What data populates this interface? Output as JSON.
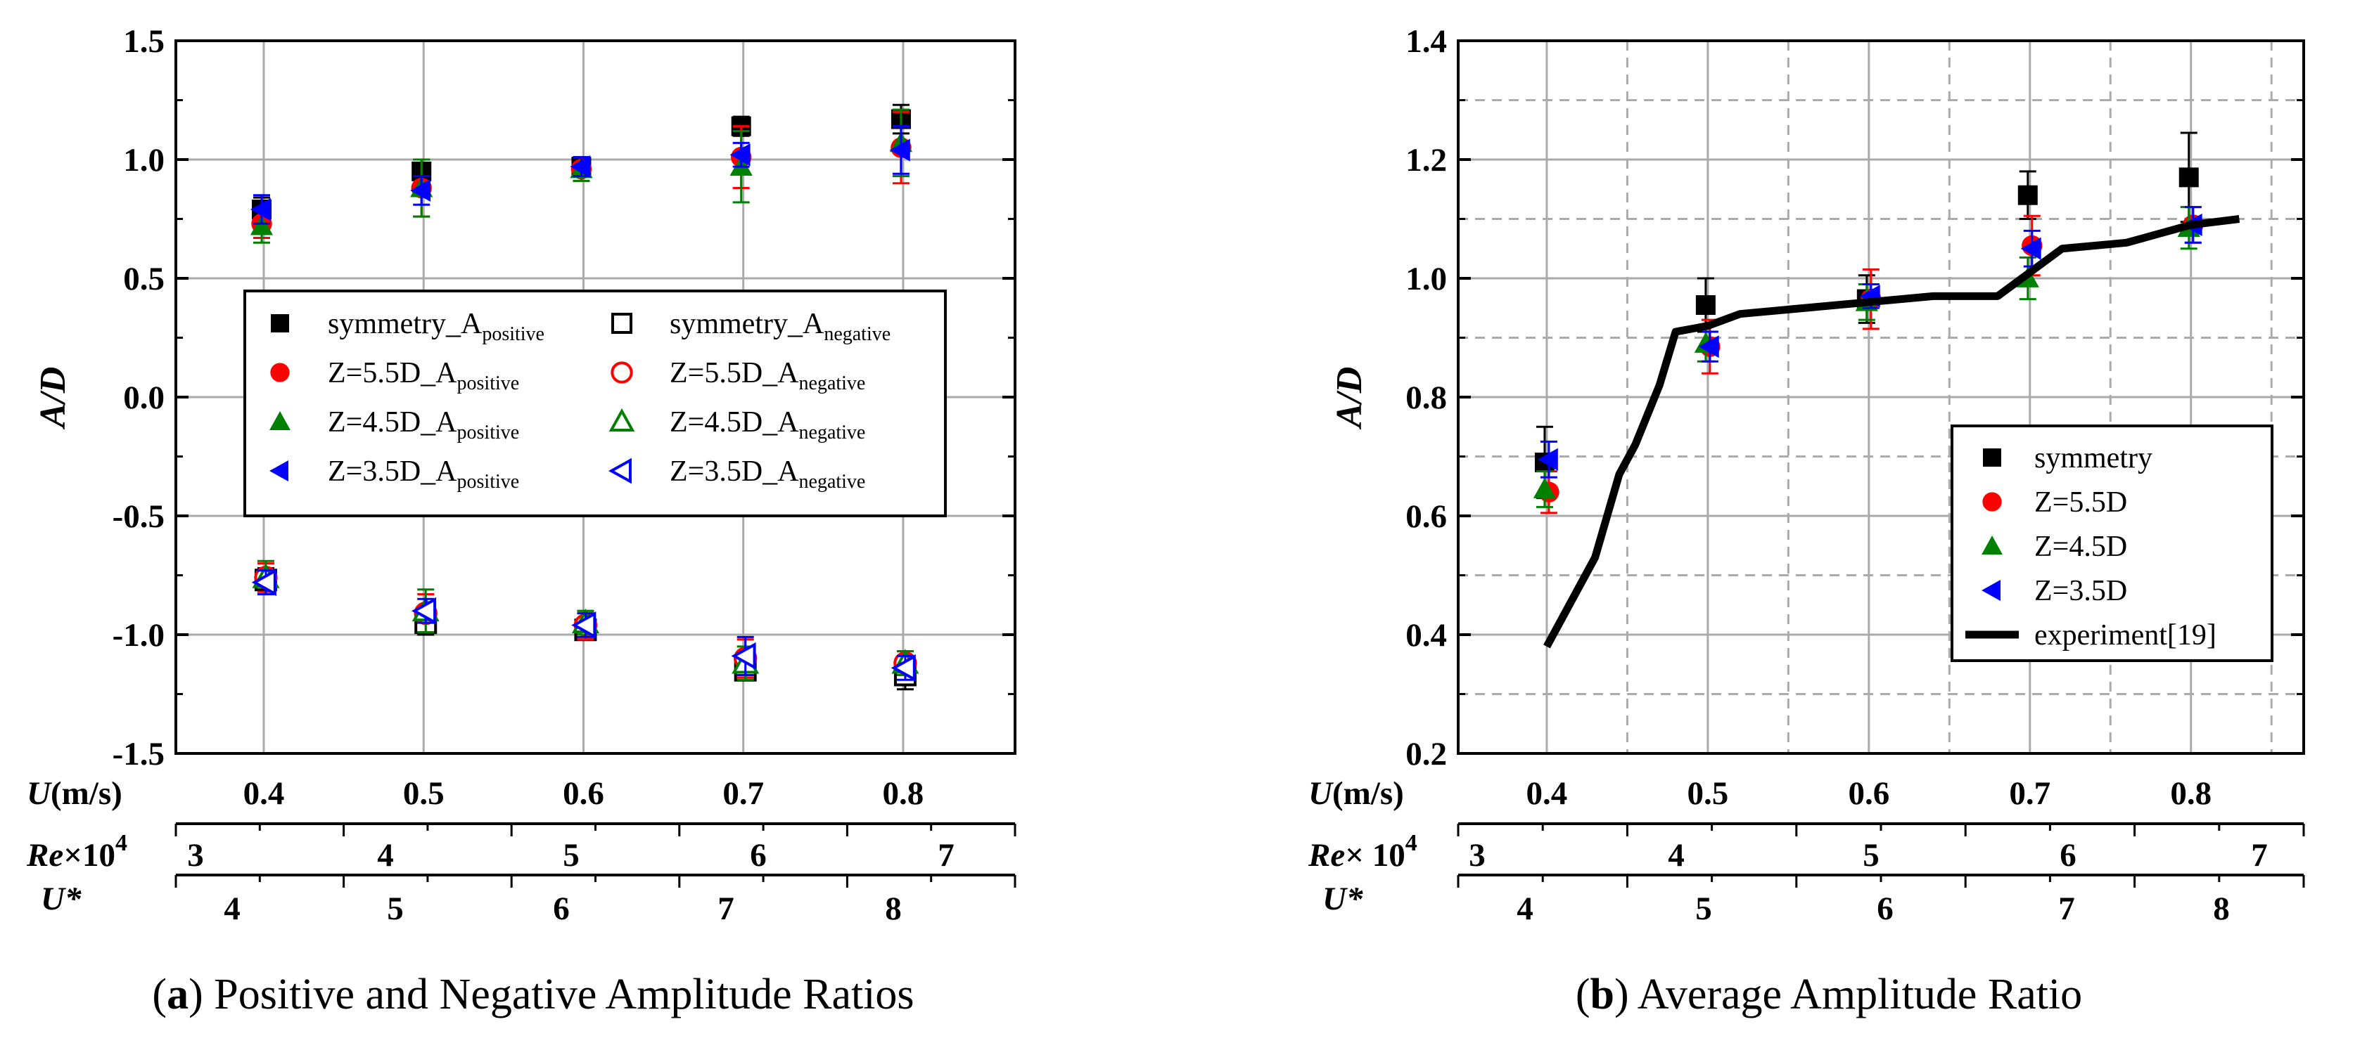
{
  "colors": {
    "symmetry": "#000000",
    "z55": "#ff0000",
    "z45": "#008000",
    "z35": "#0000ff",
    "grid": "#aaaaaa",
    "experiment": "#000000"
  },
  "captions": {
    "a_letter": "a",
    "a_text": "Positive and Negative Amplitude Ratios",
    "b_letter": "b",
    "b_text": "Average Amplitude Ratio"
  },
  "chart_data": [
    {
      "type": "scatter",
      "panel": "a",
      "ylabel": "A/D",
      "ylim": [
        -1.5,
        1.5
      ],
      "yticks": [
        "-1.5",
        "-1.0",
        "-0.5",
        "0.0",
        "0.5",
        "1.0",
        "1.5"
      ],
      "grid": true,
      "legend_position": "center",
      "axes": {
        "u": {
          "label_main": "U",
          "label_rest": "(m/s)",
          "ticks": [
            "0.4",
            "0.5",
            "0.6",
            "0.7",
            "0.8"
          ],
          "range": [
            0.345,
            0.87
          ]
        },
        "re": {
          "label_main": "Re",
          "label_rest": "×10",
          "label_sup": "4",
          "ticks": [
            "3",
            "4",
            "5",
            "6",
            "7"
          ]
        },
        "ustar": {
          "label_main": "U*",
          "ticks": [
            "4",
            "5",
            "6",
            "7",
            "8"
          ]
        }
      },
      "series": [
        {
          "name": "symmetry_A",
          "sub": "positive",
          "marker": "square",
          "filled": true,
          "color_key": "symmetry",
          "x": [
            0.4,
            0.5,
            0.6,
            0.7,
            0.8
          ],
          "y": [
            0.79,
            0.95,
            0.97,
            1.14,
            1.17
          ],
          "err": [
            0.05,
            0.05,
            0.04,
            0.04,
            0.06
          ]
        },
        {
          "name": "symmetry_A",
          "sub": "negative",
          "marker": "square",
          "filled": false,
          "color_key": "symmetry",
          "x": [
            0.4,
            0.5,
            0.6,
            0.7,
            0.8
          ],
          "y": [
            -0.77,
            -0.95,
            -0.98,
            -1.15,
            -1.17
          ],
          "err": [
            0.05,
            0.05,
            0.04,
            0.04,
            0.06
          ]
        },
        {
          "name": "Z=5.5D_A",
          "sub": "positive",
          "marker": "circle",
          "filled": true,
          "color_key": "z55",
          "x": [
            0.4,
            0.5,
            0.6,
            0.7,
            0.8
          ],
          "y": [
            0.73,
            0.88,
            0.96,
            1.01,
            1.05
          ],
          "err": [
            0.06,
            0.12,
            0.05,
            0.13,
            0.15
          ]
        },
        {
          "name": "Z=5.5D_A",
          "sub": "negative",
          "marker": "circle",
          "filled": false,
          "color_key": "z55",
          "x": [
            0.4,
            0.5,
            0.6,
            0.7,
            0.8
          ],
          "y": [
            -0.76,
            -0.91,
            -0.96,
            -1.1,
            -1.12
          ],
          "err": [
            0.06,
            0.08,
            0.06,
            0.08,
            0.05
          ]
        },
        {
          "name": "Z=4.5D_A",
          "sub": "positive",
          "marker": "triangle",
          "filled": true,
          "color_key": "z45",
          "x": [
            0.4,
            0.5,
            0.6,
            0.7,
            0.8
          ],
          "y": [
            0.72,
            0.88,
            0.96,
            0.97,
            1.07
          ],
          "err": [
            0.07,
            0.12,
            0.05,
            0.15,
            0.14
          ]
        },
        {
          "name": "Z=4.5D_A",
          "sub": "negative",
          "marker": "triangle",
          "filled": false,
          "color_key": "z45",
          "x": [
            0.4,
            0.5,
            0.6,
            0.7,
            0.8
          ],
          "y": [
            -0.76,
            -0.9,
            -0.95,
            -1.12,
            -1.12
          ],
          "err": [
            0.07,
            0.09,
            0.05,
            0.07,
            0.05
          ]
        },
        {
          "name": "Z=3.5D_A",
          "sub": "positive",
          "marker": "triangle-left",
          "filled": true,
          "color_key": "z35",
          "x": [
            0.4,
            0.5,
            0.6,
            0.7,
            0.8
          ],
          "y": [
            0.79,
            0.87,
            0.97,
            1.02,
            1.04
          ],
          "err": [
            0.06,
            0.06,
            0.04,
            0.05,
            0.1
          ]
        },
        {
          "name": "Z=3.5D_A",
          "sub": "negative",
          "marker": "triangle-left",
          "filled": false,
          "color_key": "z35",
          "x": [
            0.4,
            0.5,
            0.6,
            0.7,
            0.8
          ],
          "y": [
            -0.78,
            -0.9,
            -0.96,
            -1.09,
            -1.14
          ],
          "err": [
            0.05,
            0.05,
            0.05,
            0.08,
            0.05
          ]
        }
      ]
    },
    {
      "type": "scatter",
      "panel": "b",
      "ylabel": "A/D",
      "ylim": [
        0.2,
        1.4
      ],
      "yticks": [
        "0.2",
        "0.4",
        "0.6",
        "0.8",
        "1.0",
        "1.2",
        "1.4"
      ],
      "grid": true,
      "legend_position": "bottom-right",
      "axes": {
        "u": {
          "label_main": "U",
          "label_rest": "(m/s)",
          "ticks": [
            "0.4",
            "0.5",
            "0.6",
            "0.7",
            "0.8"
          ],
          "range": [
            0.345,
            0.87
          ]
        },
        "re": {
          "label_main": "Re",
          "label_rest": "× 10",
          "label_sup": "4",
          "ticks": [
            "3",
            "4",
            "5",
            "6",
            "7"
          ]
        },
        "ustar": {
          "label_main": "U*",
          "ticks": [
            "4",
            "5",
            "6",
            "7",
            "8"
          ]
        }
      },
      "series": [
        {
          "name": "symmetry",
          "marker": "square",
          "filled": true,
          "color_key": "symmetry",
          "x": [
            0.4,
            0.5,
            0.6,
            0.7,
            0.8
          ],
          "y": [
            0.69,
            0.955,
            0.965,
            1.14,
            1.17
          ],
          "err": [
            0.06,
            0.045,
            0.04,
            0.04,
            0.075
          ]
        },
        {
          "name": "Z=5.5D",
          "marker": "circle",
          "filled": true,
          "color_key": "z55",
          "x": [
            0.4,
            0.5,
            0.6,
            0.7,
            0.8
          ],
          "y": [
            0.64,
            0.885,
            0.965,
            1.055,
            1.09
          ],
          "err": [
            0.035,
            0.045,
            0.05,
            0.05,
            0.03
          ]
        },
        {
          "name": "Z=4.5D",
          "marker": "triangle",
          "filled": true,
          "color_key": "z45",
          "x": [
            0.4,
            0.5,
            0.6,
            0.7,
            0.8
          ],
          "y": [
            0.645,
            0.89,
            0.96,
            1.0,
            1.085
          ],
          "err": [
            0.03,
            0.03,
            0.03,
            0.035,
            0.035
          ]
        },
        {
          "name": "Z=3.5D",
          "marker": "triangle-left",
          "filled": true,
          "color_key": "z35",
          "x": [
            0.4,
            0.5,
            0.6,
            0.7,
            0.8
          ],
          "y": [
            0.695,
            0.885,
            0.97,
            1.05,
            1.09
          ],
          "err": [
            0.03,
            0.025,
            0.02,
            0.03,
            0.03
          ]
        },
        {
          "name": "experiment[19]",
          "marker": "line",
          "color_key": "experiment",
          "x": [
            0.4,
            0.43,
            0.445,
            0.455,
            0.47,
            0.48,
            0.5,
            0.52,
            0.56,
            0.6,
            0.64,
            0.68,
            0.72,
            0.76,
            0.8,
            0.83
          ],
          "y": [
            0.38,
            0.53,
            0.67,
            0.72,
            0.82,
            0.91,
            0.92,
            0.94,
            0.95,
            0.96,
            0.97,
            0.97,
            1.05,
            1.06,
            1.09,
            1.1
          ]
        }
      ]
    }
  ]
}
